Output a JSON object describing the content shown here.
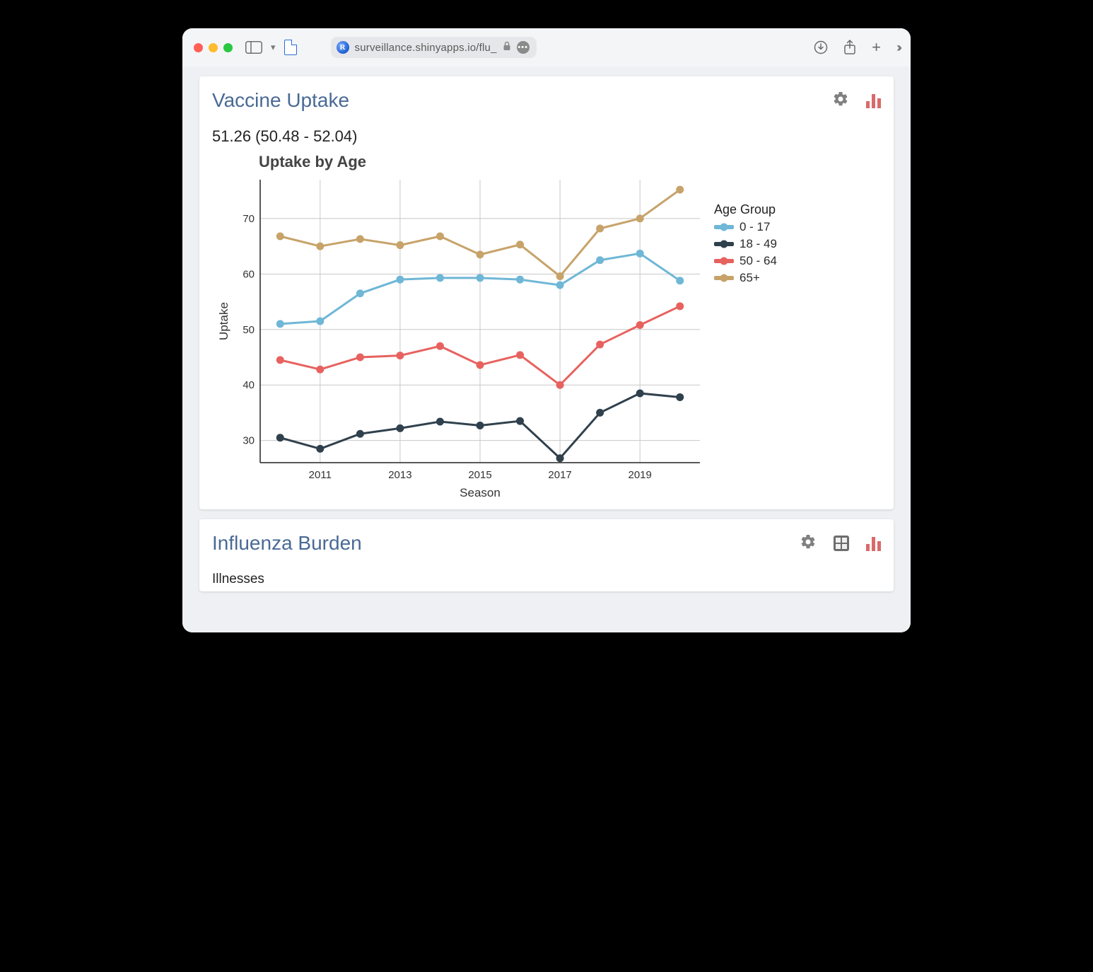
{
  "browser": {
    "favicon_letter": "R",
    "url_display": "surveillance.shinyapps.io/flu_",
    "traffic_colors": {
      "red": "#ff5f57",
      "yellow": "#febc2e",
      "green": "#28c840"
    }
  },
  "cards": {
    "vaccine": {
      "title": "Vaccine Uptake",
      "stat": "51.26 (50.48 - 52.04)",
      "chart": {
        "type": "line",
        "title": "Uptake by Age",
        "xlabel": "Season",
        "ylabel": "Uptake",
        "x_values": [
          2010,
          2011,
          2012,
          2013,
          2014,
          2015,
          2016,
          2017,
          2018,
          2019,
          2020
        ],
        "x_ticks": [
          2011,
          2013,
          2015,
          2017,
          2019
        ],
        "y_ticks": [
          30,
          40,
          50,
          60,
          70
        ],
        "xlim": [
          2009.5,
          2020.5
        ],
        "ylim": [
          26,
          77
        ],
        "background_color": "#ffffff",
        "grid_color": "#c8c8c8",
        "axis_color": "#222222",
        "title_fontsize": 22,
        "label_fontsize": 17,
        "tick_fontsize": 15,
        "line_width": 3,
        "marker_radius": 5.5,
        "legend_title": "Age Group",
        "series": [
          {
            "name": "0 - 17",
            "color": "#6fb7d6",
            "y": [
              51.0,
              51.5,
              56.5,
              59.0,
              59.3,
              59.3,
              59.0,
              58.0,
              62.5,
              63.7,
              58.8
            ]
          },
          {
            "name": "18 - 49",
            "color": "#30414d",
            "y": [
              30.5,
              28.5,
              31.2,
              32.2,
              33.4,
              32.7,
              33.5,
              26.8,
              35.0,
              38.5,
              37.8
            ]
          },
          {
            "name": "50 - 64",
            "color": "#e7625f",
            "y": [
              44.5,
              42.8,
              45.0,
              45.3,
              47.0,
              43.6,
              45.4,
              40.0,
              47.3,
              50.8,
              54.2
            ]
          },
          {
            "name": "65+",
            "color": "#c7a36a",
            "y": [
              66.8,
              65.0,
              66.3,
              65.2,
              66.8,
              63.5,
              65.3,
              59.6,
              68.2,
              70.0,
              75.2
            ]
          }
        ]
      }
    },
    "burden": {
      "title": "Influenza Burden",
      "subhead": "Illnesses"
    }
  },
  "icons": {
    "gear_color": "#808080",
    "bars_color": "#d96a6a"
  }
}
